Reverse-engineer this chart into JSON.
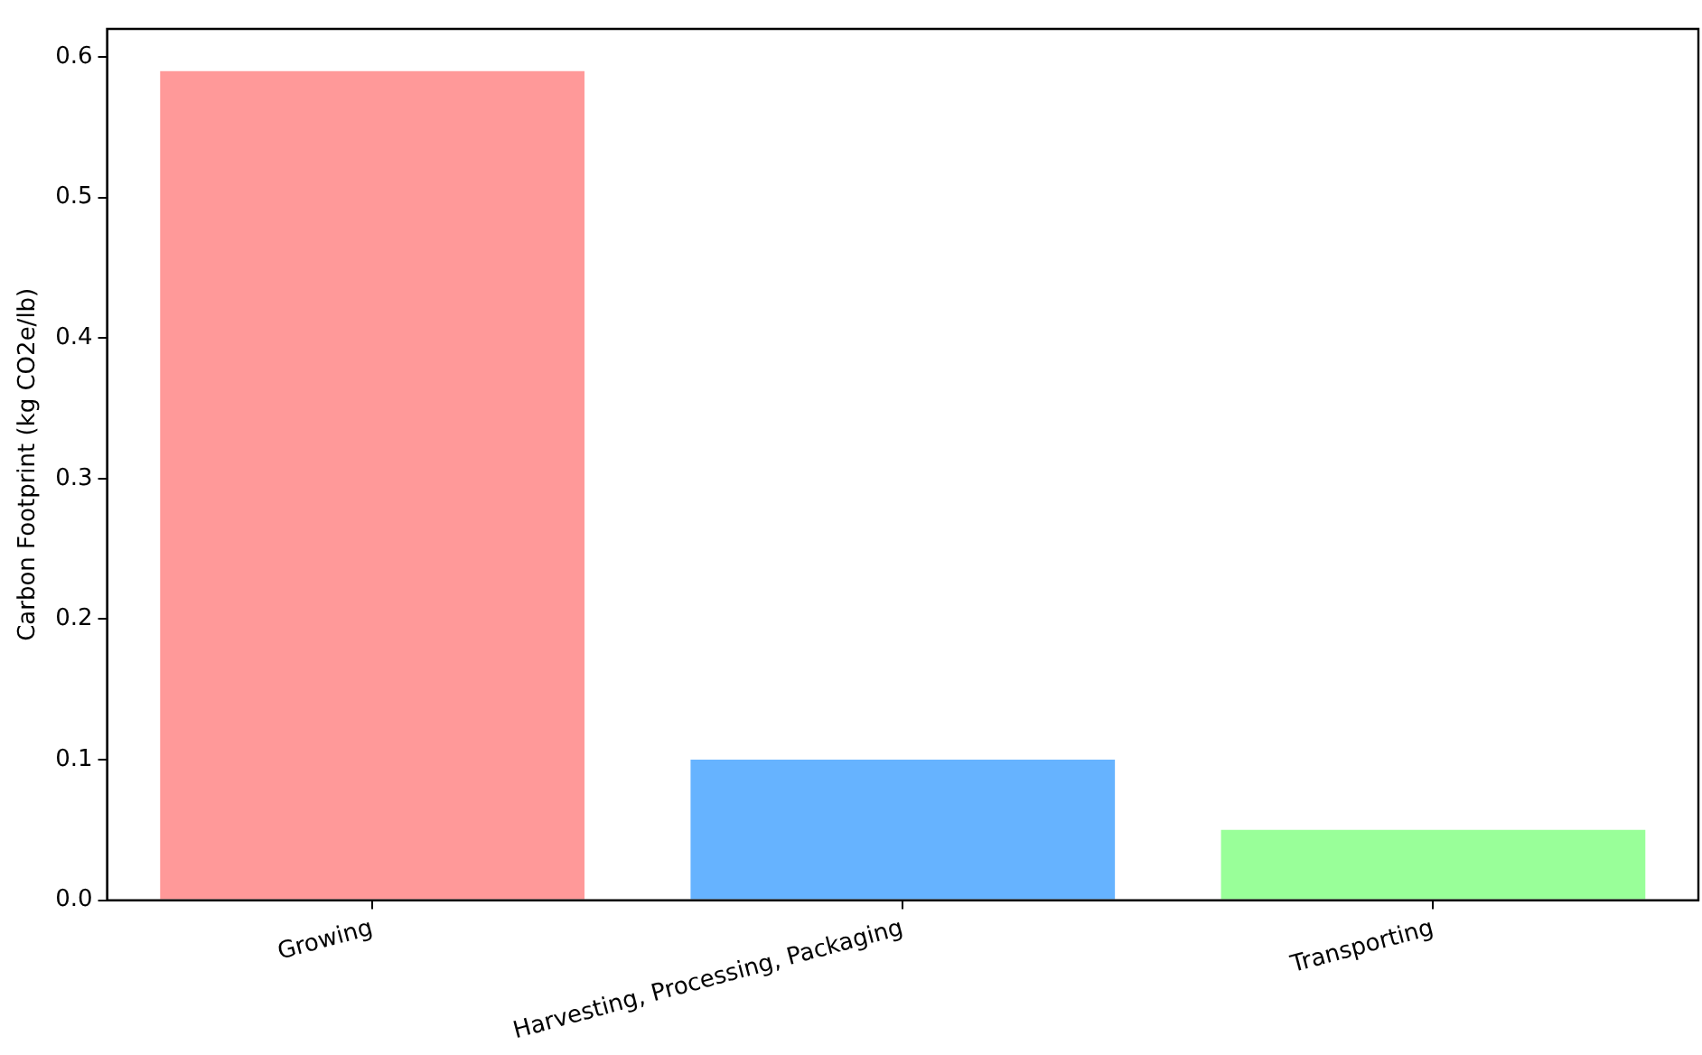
{
  "chart_data": {
    "type": "bar",
    "ylabel": "Carbon Footprint (kg CO2e/lb)",
    "categories": [
      "Growing",
      "Harvesting, Processing, Packaging",
      "Transporting"
    ],
    "values": [
      0.59,
      0.1,
      0.05
    ],
    "colors": [
      "#ff9999",
      "#66b3ff",
      "#99ff99"
    ],
    "ylim": [
      0,
      0.62
    ],
    "yticks": [
      {
        "value": 0,
        "label": "0.0"
      },
      0.1,
      0.2,
      0.3,
      0.4,
      0.5,
      0.6
    ],
    "grid": false,
    "legend": false
  }
}
